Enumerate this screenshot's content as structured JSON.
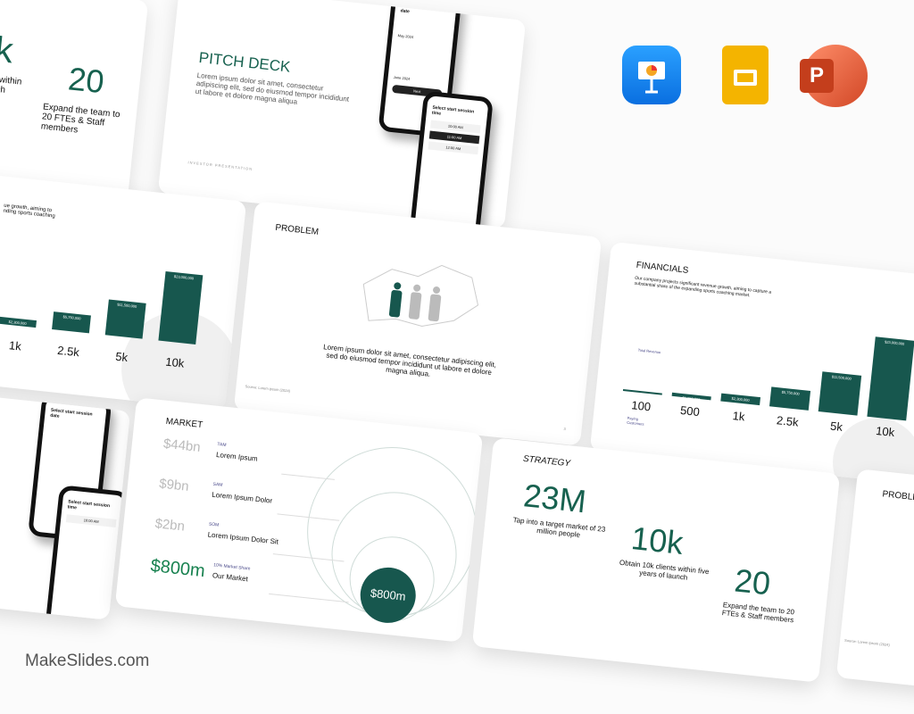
{
  "brand": "MakeSlides.com",
  "apps": [
    {
      "name": "Keynote",
      "icon": "keynote-icon",
      "color": "#1a8cf0"
    },
    {
      "name": "Google Slides",
      "icon": "google-slides-icon",
      "color": "#f4b400"
    },
    {
      "name": "PowerPoint",
      "icon": "powerpoint-icon",
      "color": "#d24726"
    }
  ],
  "accent": "#17614f",
  "pitch": {
    "title": "PITCH DECK",
    "body": "Lorem ipsum dolor sit amet, consectetur adipiscing elit, sed do eiusmod tempor incididunt ut labore et dolore magna aliqua",
    "footer": "INVESTOR PRESENTATION",
    "phone1_title": "Select start session date",
    "phone1_month1": "May 2024",
    "phone1_month2": "June 2024",
    "phone1_button": "Next",
    "phone2_title": "Select start session time",
    "phone2_times": [
      "10:00 AM",
      "11:00 AM",
      "12:00 AM"
    ]
  },
  "strategy_partial": {
    "stat1": "k",
    "desc1": "s within\nnch",
    "stat2": "20",
    "desc2": "Expand the team to 20 FTEs & Staff members"
  },
  "fin_partial": {
    "desc": "ue growth, aiming to\nnding sports coaching",
    "labels": [
      "1k",
      "2.5k",
      "5k",
      "10k"
    ],
    "bar_labels": [
      "$2,300,000",
      "$5,750,000",
      "$11,500,000",
      "$23,000,000"
    ]
  },
  "problem": {
    "title": "PROBLEM",
    "body": "Lorem ipsum dolor sit amet, consectetur adipiscing elit, sed do eiusmod tempor incididunt ut labore et dolore magna aliqua.",
    "source": "Source: Lorem ipsum (2024)",
    "page": "3"
  },
  "financials": {
    "title": "FINANCIALS",
    "body": "Our company projects significant revenue growth, aiming to capture a substantial share of the expanding sports coaching market.",
    "rev_label": "Total Revenue",
    "cust_label": "Paying Customers",
    "customers": [
      "100",
      "500",
      "1k",
      "2.5k",
      "5k",
      "10k"
    ],
    "revenue": [
      "$230,000",
      "$1,150,000",
      "$2,300,000",
      "$5,750,000",
      "$11,500,000",
      "$23,000,000"
    ],
    "revenue_values": [
      230000,
      1150000,
      2300000,
      5750000,
      11500000,
      23000000
    ]
  },
  "market": {
    "title": "MARKET",
    "rows": [
      {
        "value": "$44bn",
        "tag": "TAM",
        "label": "Lorem Ipsum"
      },
      {
        "value": "$9bn",
        "tag": "SAM",
        "label": "Lorem Ipsum Dolor"
      },
      {
        "value": "$2bn",
        "tag": "SOM",
        "label": "Lorem Ipsum Dolor Sit"
      },
      {
        "value": "$800m",
        "tag": "10% Market Share",
        "label": "Our Market"
      }
    ],
    "circle": "$800m"
  },
  "strategy": {
    "title": "STRATEGY",
    "stats": [
      {
        "value": "23M",
        "desc": "Tap into a target market of 23 million people"
      },
      {
        "value": "10k",
        "desc": "Obtain 10k clients within five years of launch"
      },
      {
        "value": "20",
        "desc": "Expand the team to 20 FTEs & Staff members"
      }
    ]
  },
  "problem_partial": {
    "title": "PROBLEM",
    "source": "Source: Lorem Ipsum (2024)"
  }
}
